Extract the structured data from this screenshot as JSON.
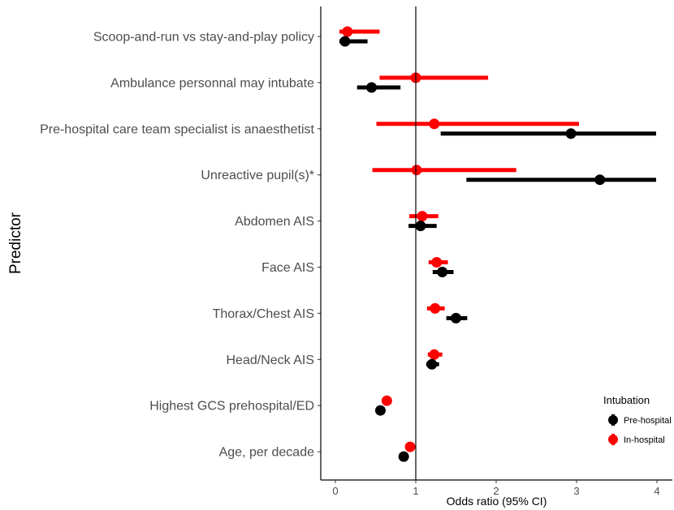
{
  "chart_data": {
    "type": "forest",
    "xlabel": "Odds ratio (95% CI)",
    "ylabel": "Predictor",
    "xlim": [
      -0.2,
      4.05
    ],
    "xticks": [
      0,
      1,
      2,
      3,
      4
    ],
    "reference_line": 1,
    "grid": false,
    "legend": {
      "title": "Intubation",
      "position": "bottom-right",
      "entries": [
        "Pre-hospital",
        "In-hospital"
      ]
    },
    "series": [
      {
        "name": "Pre-hospital",
        "color": "#000000"
      },
      {
        "name": "In-hospital",
        "color": "#ff0000"
      }
    ],
    "predictors": [
      {
        "label": "Scoop-and-run vs stay-and-play policy",
        "pre_hospital": {
          "or": 0.12,
          "lo": 0.05,
          "hi": 0.4
        },
        "in_hospital": {
          "or": 0.15,
          "lo": 0.05,
          "hi": 0.55
        }
      },
      {
        "label": "Ambulance personnal may intubate",
        "pre_hospital": {
          "or": 0.45,
          "lo": 0.27,
          "hi": 0.81
        },
        "in_hospital": {
          "or": 1.0,
          "lo": 0.55,
          "hi": 1.9
        }
      },
      {
        "label": "Pre-hospital care team specialist is anaesthetist",
        "pre_hospital": {
          "or": 2.93,
          "lo": 1.31,
          "hi": 4.0
        },
        "in_hospital": {
          "or": 1.23,
          "lo": 0.51,
          "hi": 3.03
        }
      },
      {
        "label": "Unreactive pupil(s)*",
        "pre_hospital": {
          "or": 3.29,
          "lo": 1.63,
          "hi": 4.0
        },
        "in_hospital": {
          "or": 1.01,
          "lo": 0.46,
          "hi": 2.25
        }
      },
      {
        "label": "Abdomen AIS",
        "pre_hospital": {
          "or": 1.06,
          "lo": 0.91,
          "hi": 1.26
        },
        "in_hospital": {
          "or": 1.08,
          "lo": 0.92,
          "hi": 1.28
        }
      },
      {
        "label": "Face AIS",
        "pre_hospital": {
          "or": 1.33,
          "lo": 1.21,
          "hi": 1.47
        },
        "in_hospital": {
          "or": 1.26,
          "lo": 1.16,
          "hi": 1.4
        }
      },
      {
        "label": "Thorax/Chest AIS",
        "pre_hospital": {
          "or": 1.5,
          "lo": 1.38,
          "hi": 1.64
        },
        "in_hospital": {
          "or": 1.24,
          "lo": 1.14,
          "hi": 1.36
        }
      },
      {
        "label": "Head/Neck AIS",
        "pre_hospital": {
          "or": 1.2,
          "lo": 1.13,
          "hi": 1.29
        },
        "in_hospital": {
          "or": 1.23,
          "lo": 1.15,
          "hi": 1.33
        }
      },
      {
        "label": "Highest GCS prehospital/ED",
        "pre_hospital": {
          "or": 0.56,
          "lo": 0.54,
          "hi": 0.58
        },
        "in_hospital": {
          "or": 0.64,
          "lo": 0.61,
          "hi": 0.67
        }
      },
      {
        "label": "Age, per decade",
        "pre_hospital": {
          "or": 0.85,
          "lo": 0.8,
          "hi": 0.91
        },
        "in_hospital": {
          "or": 0.93,
          "lo": 0.89,
          "hi": 0.97
        }
      }
    ]
  }
}
